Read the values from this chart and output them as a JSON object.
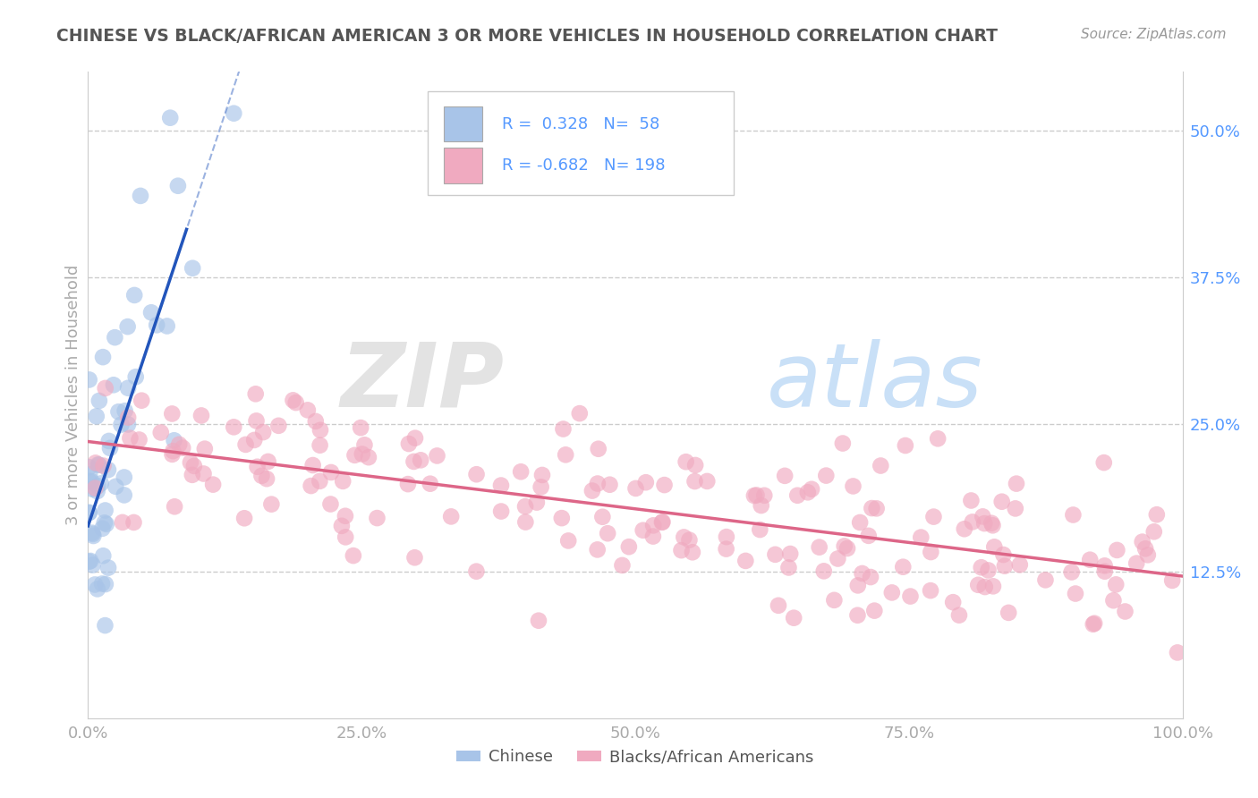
{
  "title": "CHINESE VS BLACK/AFRICAN AMERICAN 3 OR MORE VEHICLES IN HOUSEHOLD CORRELATION CHART",
  "source": "Source: ZipAtlas.com",
  "ylabel": "3 or more Vehicles in Household",
  "xlabel": "",
  "watermark_zip": "ZIP",
  "watermark_atlas": "atlas",
  "xlim": [
    0.0,
    1.0
  ],
  "ylim": [
    0.0,
    0.55
  ],
  "xticks": [
    0.0,
    0.25,
    0.5,
    0.75,
    1.0
  ],
  "xtick_labels": [
    "0.0%",
    "25.0%",
    "50.0%",
    "75.0%",
    "100.0%"
  ],
  "yticks": [
    0.125,
    0.25,
    0.375,
    0.5
  ],
  "ytick_labels": [
    "12.5%",
    "25.0%",
    "37.5%",
    "50.0%"
  ],
  "chinese_R": 0.328,
  "chinese_N": 58,
  "black_R": -0.682,
  "black_N": 198,
  "chinese_color": "#a8c4e8",
  "black_color": "#f0aac0",
  "chinese_line_color": "#2255bb",
  "black_line_color": "#dd6688",
  "grid_color": "#cccccc",
  "title_color": "#555555",
  "axis_color": "#aaaaaa",
  "background_color": "#ffffff",
  "label_color": "#5599ff",
  "chinese_seed": 12,
  "black_seed": 99
}
